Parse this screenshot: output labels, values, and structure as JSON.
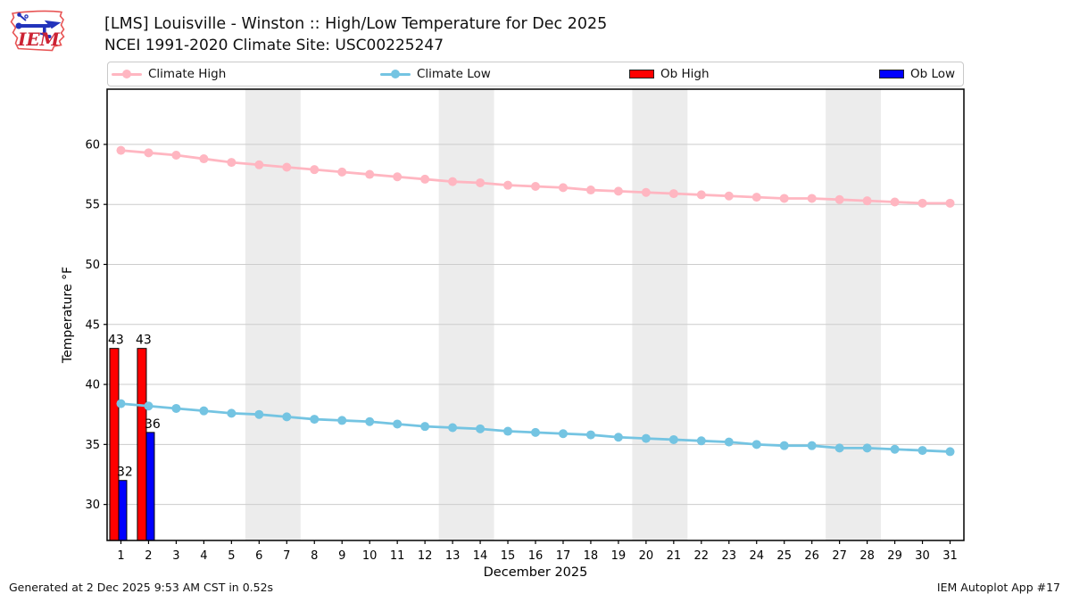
{
  "header": {
    "title": "[LMS] Louisville - Winston :: High/Low Temperature for Dec 2025",
    "subtitle": "NCEI 1991-2020 Climate Site: USC00225247",
    "logo_text": "IEM"
  },
  "legend": {
    "items": [
      {
        "label": "Climate High",
        "type": "line",
        "color": "#ffb6c1"
      },
      {
        "label": "Climate Low",
        "type": "line",
        "color": "#74c4e2"
      },
      {
        "label": "Ob High",
        "type": "patch",
        "color": "#ff0000"
      },
      {
        "label": "Ob Low",
        "type": "patch",
        "color": "#0000ff"
      }
    ]
  },
  "footer": {
    "left": "Generated at 2 Dec 2025 9:53 AM CST in 0.52s",
    "right": "IEM Autoplot App #17"
  },
  "chart_data": {
    "type": "line+bar",
    "title": "[LMS] Louisville - Winston :: High/Low Temperature for Dec 2025",
    "xlabel": "December 2025",
    "ylabel": "Temperature °F",
    "days": [
      1,
      2,
      3,
      4,
      5,
      6,
      7,
      8,
      9,
      10,
      11,
      12,
      13,
      14,
      15,
      16,
      17,
      18,
      19,
      20,
      21,
      22,
      23,
      24,
      25,
      26,
      27,
      28,
      29,
      30,
      31
    ],
    "xlim": [
      0.5,
      31.5
    ],
    "ylim": [
      27,
      64.6
    ],
    "yticks": [
      30,
      35,
      40,
      45,
      50,
      55,
      60
    ],
    "grid": "horizontal",
    "weekend_bands": [
      [
        6,
        7
      ],
      [
        13,
        14
      ],
      [
        20,
        21
      ],
      [
        27,
        28
      ]
    ],
    "band_color": "#ececec",
    "grid_color": "#cccccc",
    "legend_position": "top",
    "series": [
      {
        "name": "Climate High",
        "type": "line",
        "color": "#ffb6c1",
        "values": [
          59.5,
          59.3,
          59.1,
          58.8,
          58.5,
          58.3,
          58.1,
          57.9,
          57.7,
          57.5,
          57.3,
          57.1,
          56.9,
          56.8,
          56.6,
          56.5,
          56.4,
          56.2,
          56.1,
          56.0,
          55.9,
          55.8,
          55.7,
          55.6,
          55.5,
          55.5,
          55.4,
          55.3,
          55.2,
          55.1,
          55.1
        ]
      },
      {
        "name": "Climate Low",
        "type": "line",
        "color": "#74c4e2",
        "values": [
          38.4,
          38.2,
          38.0,
          37.8,
          37.6,
          37.5,
          37.3,
          37.1,
          37.0,
          36.9,
          36.7,
          36.5,
          36.4,
          36.3,
          36.1,
          36.0,
          35.9,
          35.8,
          35.6,
          35.5,
          35.4,
          35.3,
          35.2,
          35.0,
          34.9,
          34.9,
          34.7,
          34.7,
          34.6,
          34.5,
          34.4
        ]
      },
      {
        "name": "Ob High",
        "type": "bar",
        "color": "#ff0000",
        "points": [
          {
            "day": 1,
            "value": 43,
            "label": "43"
          },
          {
            "day": 2,
            "value": 43,
            "label": "43"
          }
        ]
      },
      {
        "name": "Ob Low",
        "type": "bar",
        "color": "#0000ff",
        "points": [
          {
            "day": 1,
            "value": 32,
            "label": "32"
          },
          {
            "day": 2,
            "value": 36,
            "label": "36"
          }
        ]
      }
    ]
  }
}
